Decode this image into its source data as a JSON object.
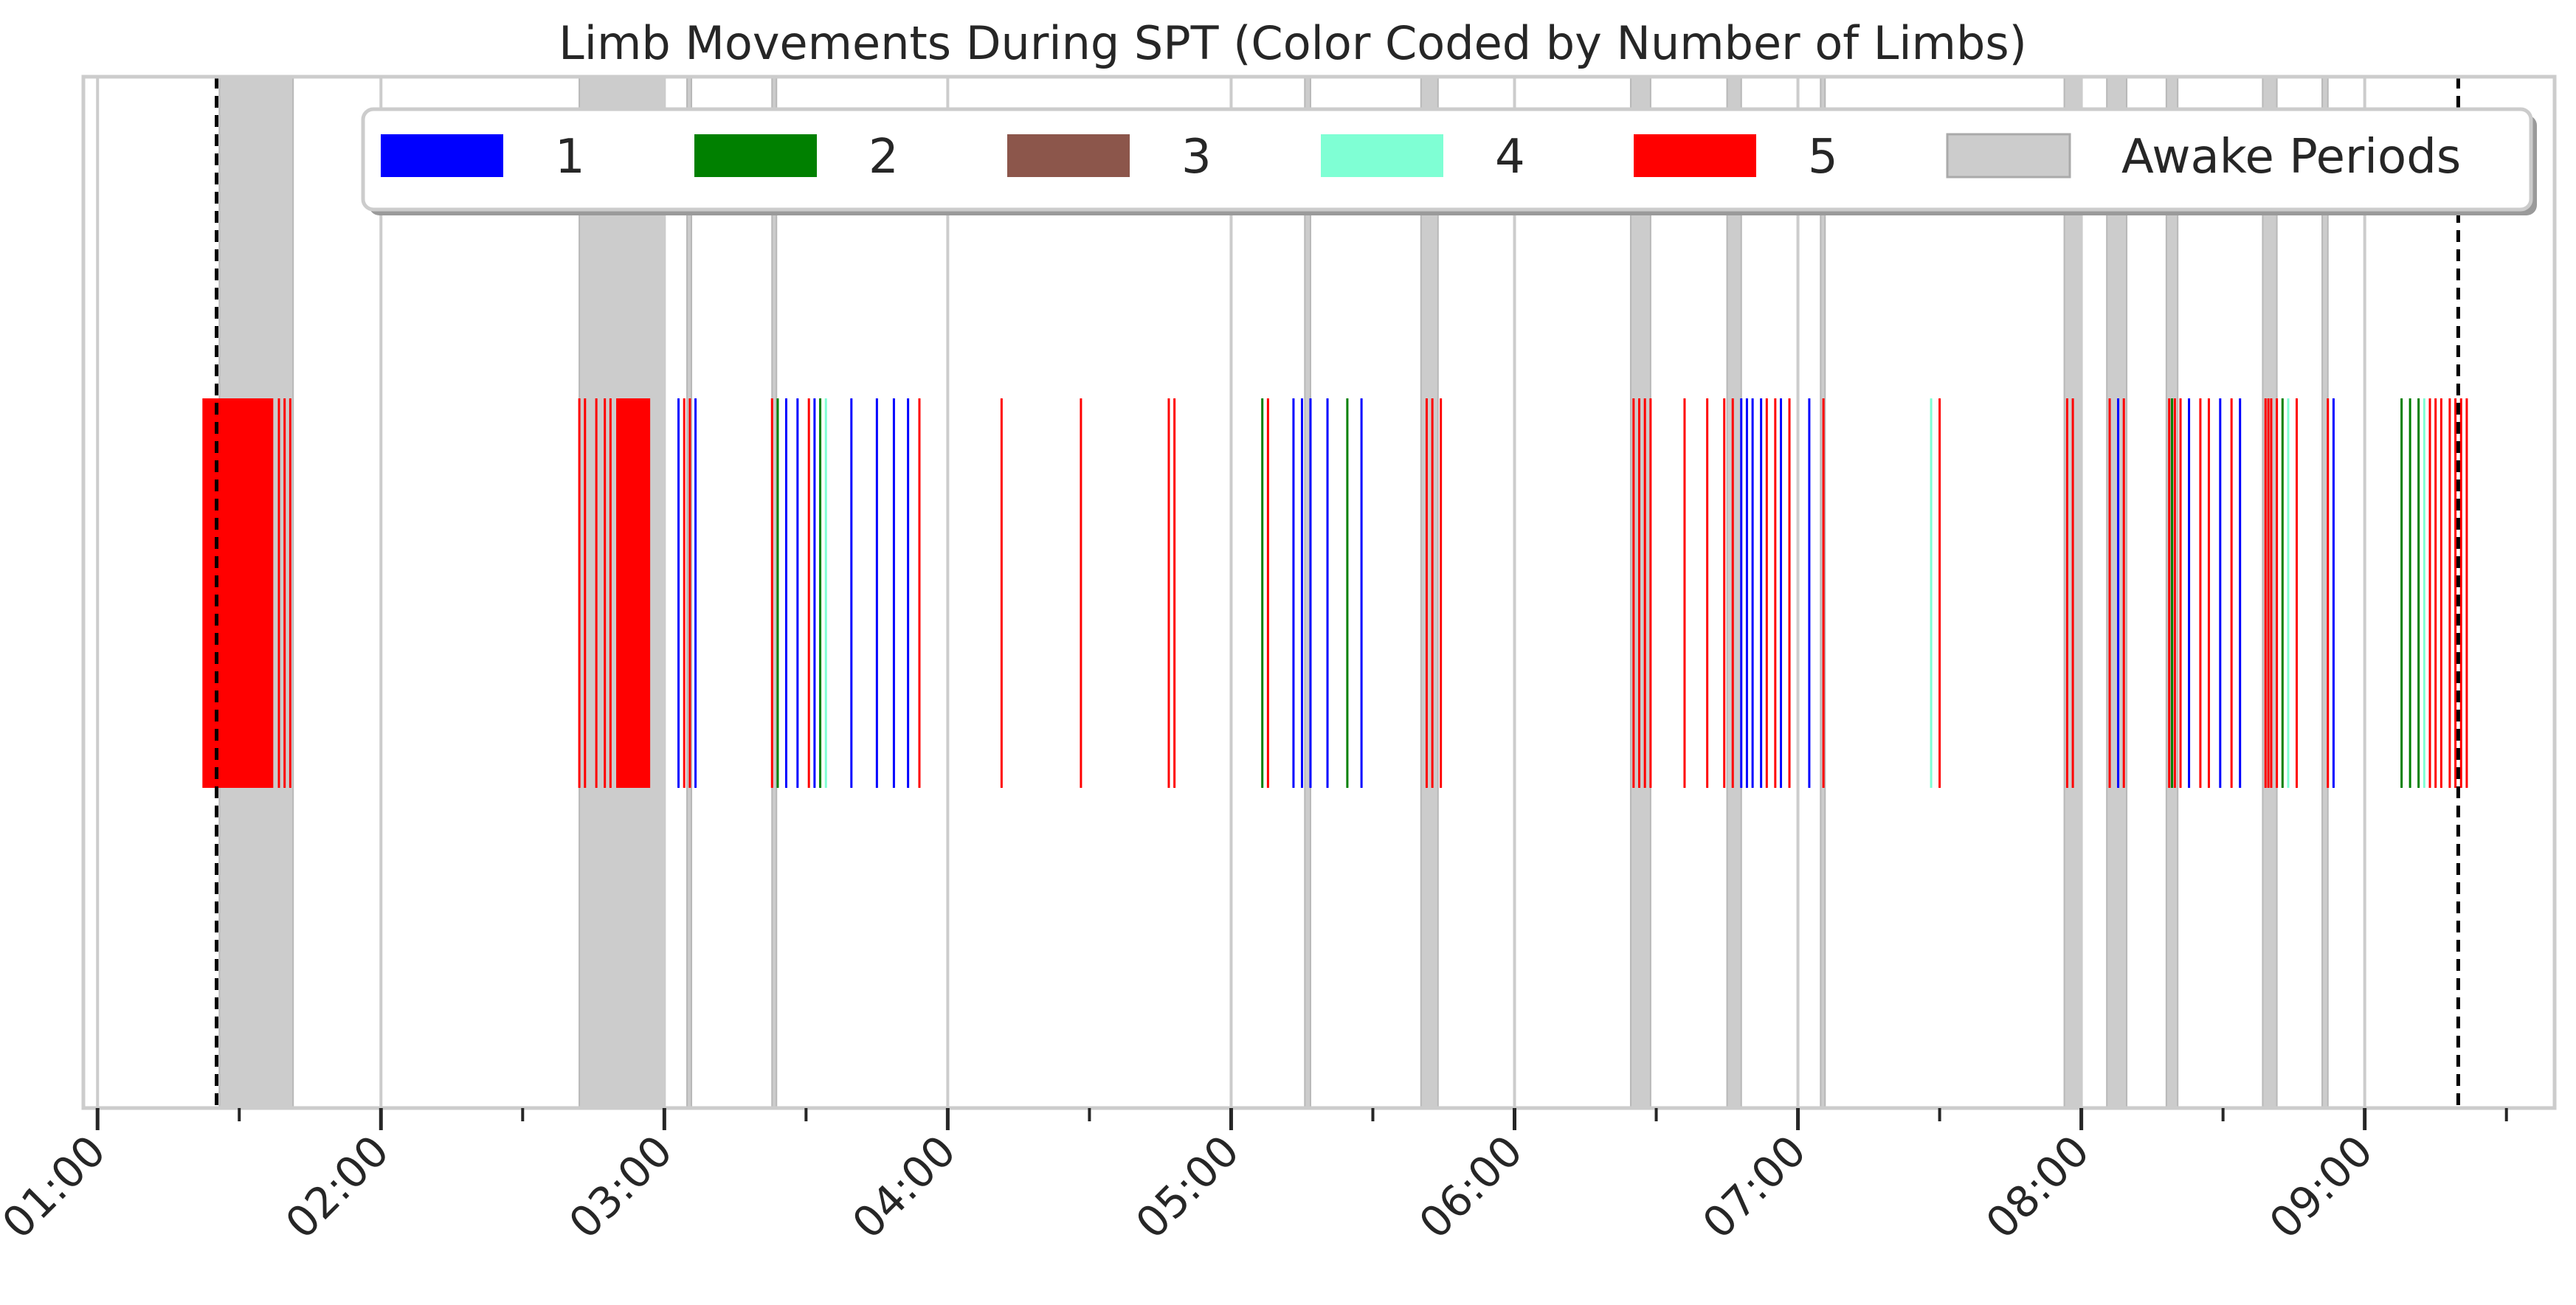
{
  "chart_data": {
    "type": "event-timeline",
    "title": "Limb Movements During SPT (Color Coded by Number of Limbs)",
    "xlabel": "",
    "ylabel": "",
    "xlim_hours": [
      0.95,
      9.67
    ],
    "xticks": [
      {
        "h": 1,
        "label": "01:00"
      },
      {
        "h": 2,
        "label": "02:00"
      },
      {
        "h": 3,
        "label": "03:00"
      },
      {
        "h": 4,
        "label": "04:00"
      },
      {
        "h": 5,
        "label": "05:00"
      },
      {
        "h": 6,
        "label": "06:00"
      },
      {
        "h": 7,
        "label": "07:00"
      },
      {
        "h": 8,
        "label": "08:00"
      },
      {
        "h": 9,
        "label": "09:00"
      }
    ],
    "minor_tick_interval_hours": 0.5,
    "grid": true,
    "legend": {
      "placement": "top-right",
      "items": [
        {
          "label": "1",
          "color": "#0000ff"
        },
        {
          "label": "2",
          "color": "#008000"
        },
        {
          "label": "3",
          "color": "#8c564b"
        },
        {
          "label": "4",
          "color": "#7fffd4"
        },
        {
          "label": "5",
          "color": "#ff0000"
        },
        {
          "label": "Awake Periods",
          "color": "#cccccc"
        }
      ]
    },
    "spt_bounds_hours": [
      1.42,
      9.33
    ],
    "awake_periods_hours": [
      [
        1.43,
        1.69
      ],
      [
        2.7,
        3.0
      ],
      [
        3.08,
        3.09
      ],
      [
        3.38,
        3.39
      ],
      [
        5.26,
        5.28
      ],
      [
        5.67,
        5.73
      ],
      [
        6.41,
        6.48
      ],
      [
        6.75,
        6.8
      ],
      [
        7.08,
        7.09
      ],
      [
        7.94,
        8.0
      ],
      [
        8.09,
        8.16
      ],
      [
        8.3,
        8.34
      ],
      [
        8.64,
        8.69
      ],
      [
        8.85,
        8.87
      ]
    ],
    "movement_clusters": [
      {
        "range_hours": [
          1.37,
          1.62
        ],
        "limbs": 5,
        "dense": true
      },
      {
        "range_hours": [
          2.83,
          2.95
        ],
        "limbs": 5,
        "dense": true
      }
    ],
    "movements": [
      {
        "t": 1.64,
        "limbs": 5
      },
      {
        "t": 1.66,
        "limbs": 5
      },
      {
        "t": 1.68,
        "limbs": 5
      },
      {
        "t": 2.7,
        "limbs": 5
      },
      {
        "t": 2.72,
        "limbs": 5
      },
      {
        "t": 2.76,
        "limbs": 5
      },
      {
        "t": 2.79,
        "limbs": 5
      },
      {
        "t": 2.81,
        "limbs": 5
      },
      {
        "t": 3.05,
        "limbs": 1
      },
      {
        "t": 3.07,
        "limbs": 5
      },
      {
        "t": 3.09,
        "limbs": 5
      },
      {
        "t": 3.11,
        "limbs": 1
      },
      {
        "t": 3.38,
        "limbs": 5
      },
      {
        "t": 3.4,
        "limbs": 2
      },
      {
        "t": 3.43,
        "limbs": 1
      },
      {
        "t": 3.47,
        "limbs": 1
      },
      {
        "t": 3.51,
        "limbs": 5
      },
      {
        "t": 3.53,
        "limbs": 1
      },
      {
        "t": 3.55,
        "limbs": 2
      },
      {
        "t": 3.57,
        "limbs": 4
      },
      {
        "t": 3.66,
        "limbs": 1
      },
      {
        "t": 3.75,
        "limbs": 1
      },
      {
        "t": 3.81,
        "limbs": 1
      },
      {
        "t": 3.86,
        "limbs": 1
      },
      {
        "t": 3.9,
        "limbs": 5
      },
      {
        "t": 4.19,
        "limbs": 5
      },
      {
        "t": 4.47,
        "limbs": 5
      },
      {
        "t": 4.78,
        "limbs": 5
      },
      {
        "t": 4.8,
        "limbs": 5
      },
      {
        "t": 5.11,
        "limbs": 2
      },
      {
        "t": 5.13,
        "limbs": 5
      },
      {
        "t": 5.22,
        "limbs": 1
      },
      {
        "t": 5.25,
        "limbs": 1
      },
      {
        "t": 5.28,
        "limbs": 1
      },
      {
        "t": 5.34,
        "limbs": 1
      },
      {
        "t": 5.41,
        "limbs": 2
      },
      {
        "t": 5.46,
        "limbs": 1
      },
      {
        "t": 5.69,
        "limbs": 5
      },
      {
        "t": 5.71,
        "limbs": 5
      },
      {
        "t": 5.74,
        "limbs": 5
      },
      {
        "t": 6.42,
        "limbs": 5
      },
      {
        "t": 6.44,
        "limbs": 5
      },
      {
        "t": 6.46,
        "limbs": 5
      },
      {
        "t": 6.48,
        "limbs": 5
      },
      {
        "t": 6.6,
        "limbs": 5
      },
      {
        "t": 6.68,
        "limbs": 5
      },
      {
        "t": 6.74,
        "limbs": 5
      },
      {
        "t": 6.77,
        "limbs": 5
      },
      {
        "t": 6.8,
        "limbs": 1
      },
      {
        "t": 6.82,
        "limbs": 1
      },
      {
        "t": 6.84,
        "limbs": 1
      },
      {
        "t": 6.87,
        "limbs": 1
      },
      {
        "t": 6.89,
        "limbs": 5
      },
      {
        "t": 6.92,
        "limbs": 5
      },
      {
        "t": 6.94,
        "limbs": 1
      },
      {
        "t": 6.97,
        "limbs": 5
      },
      {
        "t": 7.04,
        "limbs": 1
      },
      {
        "t": 7.09,
        "limbs": 5
      },
      {
        "t": 7.47,
        "limbs": 4
      },
      {
        "t": 7.5,
        "limbs": 5
      },
      {
        "t": 7.95,
        "limbs": 5
      },
      {
        "t": 7.97,
        "limbs": 5
      },
      {
        "t": 8.1,
        "limbs": 5
      },
      {
        "t": 8.13,
        "limbs": 1
      },
      {
        "t": 8.15,
        "limbs": 5
      },
      {
        "t": 8.31,
        "limbs": 5
      },
      {
        "t": 8.32,
        "limbs": 2
      },
      {
        "t": 8.33,
        "limbs": 5
      },
      {
        "t": 8.35,
        "limbs": 5
      },
      {
        "t": 8.38,
        "limbs": 1
      },
      {
        "t": 8.42,
        "limbs": 5
      },
      {
        "t": 8.45,
        "limbs": 5
      },
      {
        "t": 8.49,
        "limbs": 1
      },
      {
        "t": 8.53,
        "limbs": 5
      },
      {
        "t": 8.56,
        "limbs": 1
      },
      {
        "t": 8.65,
        "limbs": 5
      },
      {
        "t": 8.66,
        "limbs": 5
      },
      {
        "t": 8.67,
        "limbs": 5
      },
      {
        "t": 8.69,
        "limbs": 5
      },
      {
        "t": 8.71,
        "limbs": 2
      },
      {
        "t": 8.73,
        "limbs": 4
      },
      {
        "t": 8.76,
        "limbs": 5
      },
      {
        "t": 8.87,
        "limbs": 5
      },
      {
        "t": 8.89,
        "limbs": 1
      },
      {
        "t": 9.13,
        "limbs": 2
      },
      {
        "t": 9.16,
        "limbs": 2
      },
      {
        "t": 9.19,
        "limbs": 2
      },
      {
        "t": 9.21,
        "limbs": 4
      },
      {
        "t": 9.23,
        "limbs": 5
      },
      {
        "t": 9.25,
        "limbs": 5
      },
      {
        "t": 9.27,
        "limbs": 5
      },
      {
        "t": 9.3,
        "limbs": 5
      },
      {
        "t": 9.32,
        "limbs": 5
      },
      {
        "t": 9.34,
        "limbs": 5
      },
      {
        "t": 9.36,
        "limbs": 5
      }
    ]
  }
}
